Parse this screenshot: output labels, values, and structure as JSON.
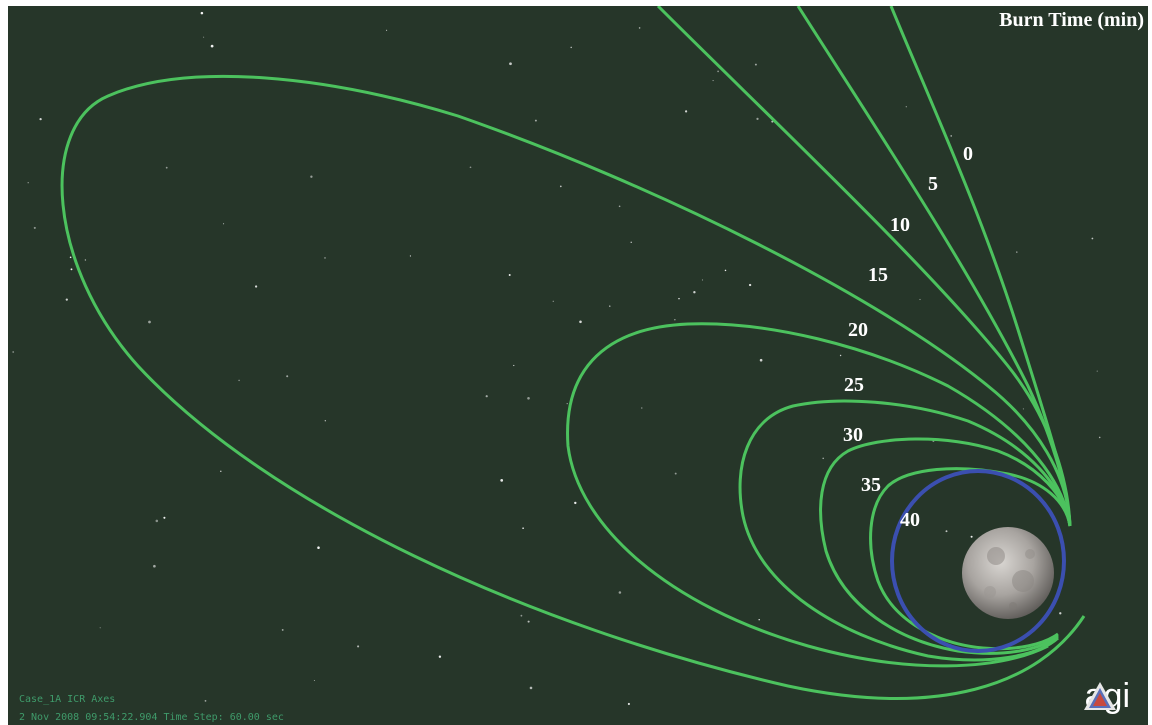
{
  "viewport": {
    "legend_title": "Burn Time (min)",
    "burn_labels": [
      "0",
      "5",
      "10",
      "15",
      "20",
      "25",
      "30",
      "35",
      "40"
    ],
    "status": {
      "scenario_line": "Case_1A ICR Axes",
      "time_line": "2 Nov 2008 09:54:22.904   Time Step: 60.00 sec"
    },
    "logo": {
      "text": "agi",
      "icon": "agi-triangle-logo-icon"
    },
    "body": {
      "icon": "moon-icon"
    },
    "colors": {
      "background": "#263629",
      "trajectory": "#4cc25e",
      "final_orbit": "#3b4fb0",
      "label_text": "#ffffff",
      "status_text": "#3f9a6a"
    }
  }
}
